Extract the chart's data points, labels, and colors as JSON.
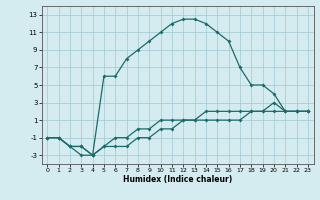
{
  "title": "",
  "xlabel": "Humidex (Indice chaleur)",
  "ylabel": "",
  "bg_color": "#d4ecf0",
  "grid_color": "#aacdd6",
  "line_color": "#1a6b6b",
  "xlim": [
    -0.5,
    23.5
  ],
  "ylim": [
    -4,
    14
  ],
  "xticks": [
    0,
    1,
    2,
    3,
    4,
    5,
    6,
    7,
    8,
    9,
    10,
    11,
    12,
    13,
    14,
    15,
    16,
    17,
    18,
    19,
    20,
    21,
    22,
    23
  ],
  "yticks": [
    -3,
    -1,
    1,
    3,
    5,
    7,
    9,
    11,
    13
  ],
  "line1_x": [
    0,
    1,
    2,
    3,
    4,
    5,
    6,
    7,
    8,
    9,
    10,
    11,
    12,
    13,
    14,
    15,
    16,
    17,
    18,
    19,
    20,
    21,
    22,
    23
  ],
  "line1_y": [
    -1,
    -1,
    -2,
    -3,
    -3,
    6,
    6,
    8,
    9,
    10,
    11,
    12,
    12.5,
    12.5,
    12,
    11,
    10,
    7,
    5,
    5,
    4,
    2,
    2,
    2
  ],
  "line2_x": [
    0,
    1,
    2,
    3,
    4,
    5,
    6,
    7,
    8,
    9,
    10,
    11,
    12,
    13,
    14,
    15,
    16,
    17,
    18,
    19,
    20,
    21,
    22,
    23
  ],
  "line2_y": [
    -1,
    -1,
    -2,
    -2,
    -3,
    -2,
    -2,
    -2,
    -1,
    -1,
    0,
    0,
    1,
    1,
    1,
    1,
    1,
    1,
    2,
    2,
    3,
    2,
    2,
    2
  ],
  "line3_x": [
    0,
    1,
    2,
    3,
    4,
    5,
    6,
    7,
    8,
    9,
    10,
    11,
    12,
    13,
    14,
    15,
    16,
    17,
    18,
    19,
    20,
    21,
    22,
    23
  ],
  "line3_y": [
    -1,
    -1,
    -2,
    -2,
    -3,
    -2,
    -1,
    -1,
    0,
    0,
    1,
    1,
    1,
    1,
    2,
    2,
    2,
    2,
    2,
    2,
    2,
    2,
    2,
    2
  ]
}
